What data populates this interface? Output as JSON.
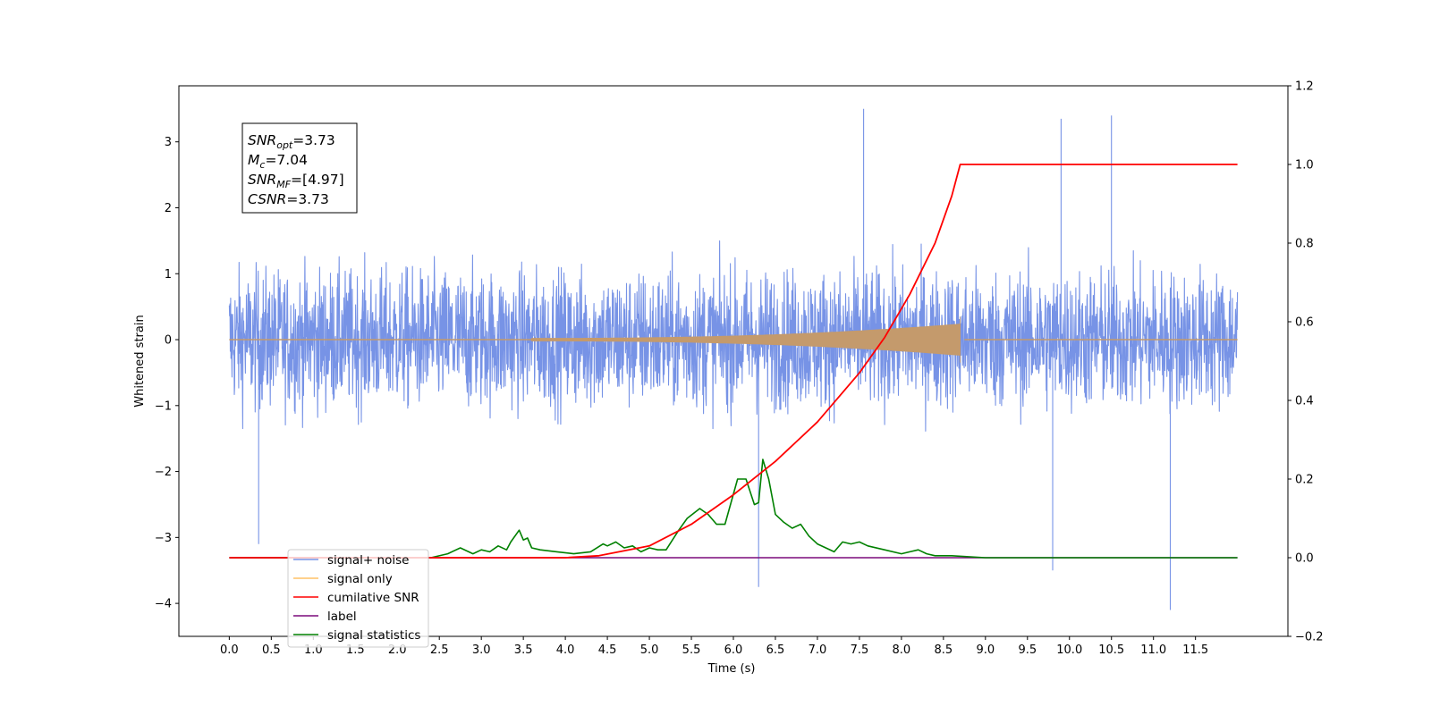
{
  "chart_data": {
    "type": "line",
    "xlabel": "Time (s)",
    "ylabel": "Whitened strain",
    "xlim": [
      -0.6,
      12.6
    ],
    "ylim_left": [
      -4.5,
      3.85
    ],
    "ylim_right": [
      -0.2,
      1.2
    ],
    "x_ticks": [
      "0.0",
      "0.5",
      "1.0",
      "1.5",
      "2.0",
      "2.5",
      "3.0",
      "3.5",
      "4.0",
      "4.5",
      "5.0",
      "5.5",
      "6.0",
      "6.5",
      "7.0",
      "7.5",
      "8.0",
      "8.5",
      "9.0",
      "9.5",
      "10.0",
      "10.5",
      "11.0",
      "11.5"
    ],
    "y_ticks_left": [
      "3",
      "2",
      "1",
      "0",
      "−1",
      "−2",
      "−3",
      "−4"
    ],
    "y_ticks_right": [
      "1.2",
      "1.0",
      "0.8",
      "0.6",
      "0.4",
      "0.2",
      "0.0",
      "−0.2"
    ],
    "annotation": {
      "lines": [
        {
          "label": "SNR",
          "sub": "opt",
          "value": "=3.73"
        },
        {
          "label": "M",
          "sub": "c",
          "value": "=7.04"
        },
        {
          "label": "SNR",
          "sub": "MF",
          "value": "=[4.97]"
        },
        {
          "label": "CSNR",
          "sub": "",
          "value": "=3.73"
        }
      ]
    },
    "legend_position": "lower-left",
    "series": [
      {
        "name": "signal+ noise",
        "axis": "left",
        "color": "#7793e6",
        "x_range": [
          0.0,
          12.0
        ],
        "amplitude_range": [
          -4.15,
          3.5
        ],
        "peaks": [
          [
            7.55,
            3.5
          ],
          [
            10.5,
            3.4
          ],
          [
            9.9,
            3.35
          ],
          [
            6.3,
            -3.75
          ],
          [
            9.8,
            -3.5
          ],
          [
            11.2,
            -4.1
          ],
          [
            0.35,
            -3.1
          ]
        ]
      },
      {
        "name": "signal only",
        "axis": "left",
        "color": "#c49a6c",
        "chirp_start": 3.6,
        "merger": 8.7,
        "peak_amplitude": 0.35
      },
      {
        "name": "cumilative SNR",
        "axis": "right",
        "color": "#ff0000",
        "x": [
          0.0,
          4.0,
          4.4,
          5.0,
          5.5,
          6.0,
          6.5,
          7.0,
          7.5,
          7.8,
          8.1,
          8.4,
          8.6,
          8.7,
          8.72,
          12.0
        ],
        "y": [
          0.0,
          0.0,
          0.005,
          0.03,
          0.085,
          0.16,
          0.245,
          0.345,
          0.47,
          0.56,
          0.67,
          0.8,
          0.92,
          1.0,
          1.0,
          1.0
        ]
      },
      {
        "name": "label",
        "axis": "right",
        "color": "#7b0a7b",
        "x": [
          0.0,
          12.0
        ],
        "y": [
          0.0,
          0.0
        ]
      },
      {
        "name": "signal statistics",
        "axis": "right",
        "color": "#008000",
        "x": [
          0.0,
          2.4,
          2.6,
          2.75,
          2.9,
          3.0,
          3.1,
          3.2,
          3.3,
          3.35,
          3.45,
          3.5,
          3.55,
          3.6,
          3.7,
          3.9,
          4.1,
          4.3,
          4.45,
          4.5,
          4.6,
          4.7,
          4.8,
          4.9,
          5.0,
          5.1,
          5.2,
          5.35,
          5.45,
          5.6,
          5.7,
          5.8,
          5.9,
          6.05,
          6.1,
          6.15,
          6.25,
          6.3,
          6.35,
          6.42,
          6.5,
          6.6,
          6.7,
          6.8,
          6.9,
          7.0,
          7.2,
          7.3,
          7.4,
          7.5,
          7.6,
          7.8,
          8.0,
          8.1,
          8.2,
          8.3,
          8.4,
          8.6,
          9.0,
          12.0
        ],
        "y": [
          0.0,
          0.0,
          0.01,
          0.025,
          0.01,
          0.02,
          0.015,
          0.03,
          0.02,
          0.04,
          0.07,
          0.045,
          0.05,
          0.025,
          0.02,
          0.015,
          0.01,
          0.015,
          0.035,
          0.03,
          0.04,
          0.025,
          0.03,
          0.015,
          0.025,
          0.02,
          0.02,
          0.07,
          0.1,
          0.125,
          0.11,
          0.085,
          0.085,
          0.2,
          0.2,
          0.2,
          0.135,
          0.14,
          0.25,
          0.2,
          0.11,
          0.09,
          0.075,
          0.085,
          0.055,
          0.035,
          0.015,
          0.04,
          0.035,
          0.04,
          0.03,
          0.02,
          0.01,
          0.015,
          0.02,
          0.01,
          0.005,
          0.005,
          0.0,
          0.0
        ]
      }
    ]
  }
}
